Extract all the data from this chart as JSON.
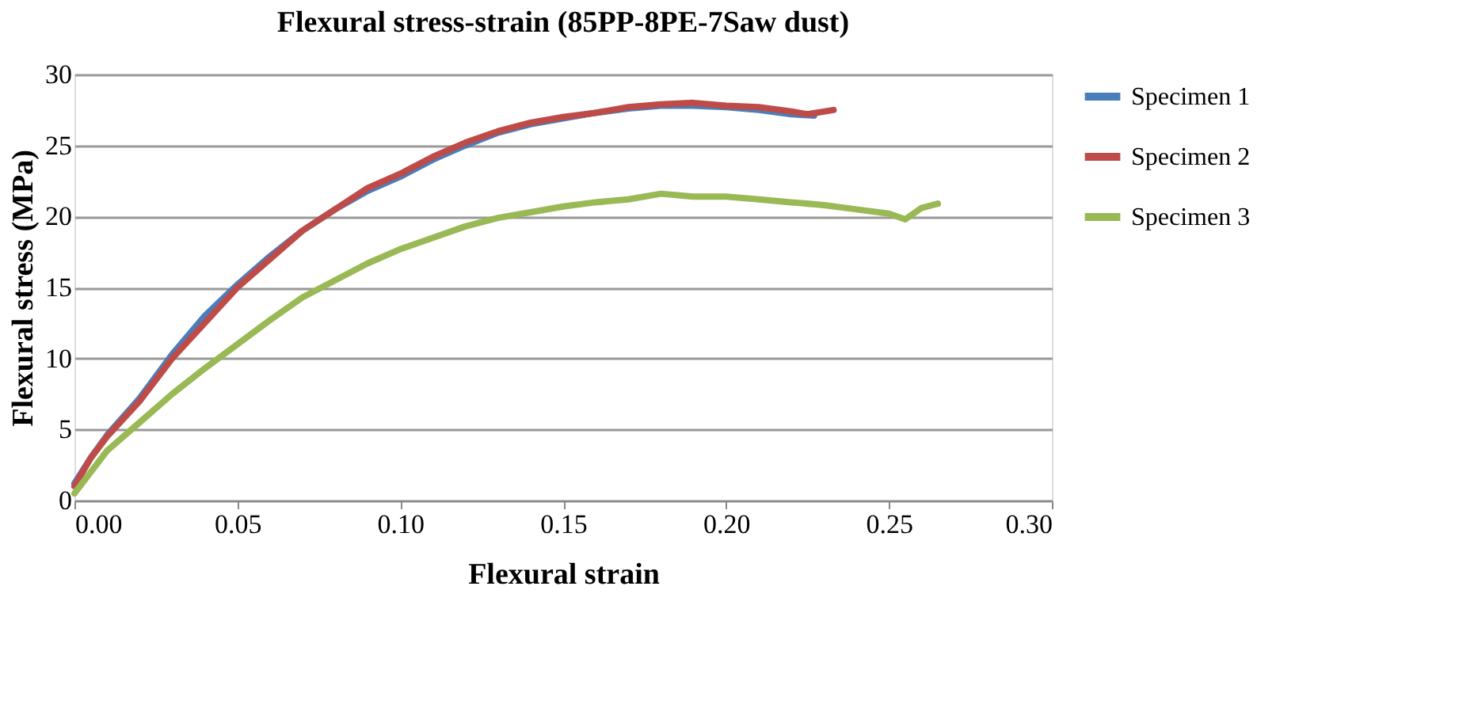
{
  "chart_data": {
    "type": "line",
    "title": "Flexural stress-strain (85PP-8PE-7Saw dust)",
    "xlabel": "Flexural strain",
    "ylabel": "Flexural stress (MPa)",
    "xlim": [
      0,
      0.3
    ],
    "xticks": [
      {
        "value": 0,
        "label": "0.00"
      },
      0.05,
      {
        "value": 0.1,
        "label": "0.10"
      },
      0.15,
      {
        "value": 0.2,
        "label": "0.20"
      },
      0.25,
      {
        "value": 0.3,
        "label": "0.30"
      }
    ],
    "ylim": [
      0,
      30
    ],
    "yticks": [
      0,
      5,
      10,
      15,
      20,
      25,
      30
    ],
    "grid": "y",
    "legend": "right",
    "marker": "none",
    "line_style": "solid",
    "series": [
      {
        "name": "Specimen 1",
        "color": "#4a7ebb",
        "x": [
          0,
          0.005,
          0.01,
          0.02,
          0.03,
          0.04,
          0.05,
          0.06,
          0.07,
          0.08,
          0.09,
          0.1,
          0.11,
          0.12,
          0.13,
          0.14,
          0.15,
          0.16,
          0.17,
          0.18,
          0.19,
          0.2,
          0.21,
          0.22,
          0.227
        ],
        "values": [
          1.2,
          3,
          4.6,
          7.2,
          10.3,
          13,
          15.2,
          17.2,
          19,
          20.5,
          21.8,
          22.8,
          24,
          25,
          25.9,
          26.5,
          26.9,
          27.3,
          27.6,
          27.8,
          27.8,
          27.7,
          27.5,
          27.2,
          27.1
        ]
      },
      {
        "name": "Specimen 2",
        "color": "#be4b48",
        "x": [
          0,
          0.005,
          0.01,
          0.02,
          0.03,
          0.04,
          0.05,
          0.06,
          0.07,
          0.08,
          0.09,
          0.1,
          0.11,
          0.12,
          0.13,
          0.14,
          0.15,
          0.16,
          0.17,
          0.18,
          0.19,
          0.2,
          0.21,
          0.22,
          0.225,
          0.233
        ],
        "values": [
          1,
          3,
          4.5,
          7,
          10,
          12.5,
          15,
          17,
          19,
          20.5,
          22,
          23,
          24.2,
          25.2,
          26,
          26.6,
          27,
          27.3,
          27.7,
          27.9,
          28,
          27.8,
          27.7,
          27.4,
          27.2,
          27.5
        ]
      },
      {
        "name": "Specimen 3",
        "color": "#98b954",
        "x": [
          0,
          0.005,
          0.01,
          0.02,
          0.03,
          0.04,
          0.05,
          0.06,
          0.07,
          0.08,
          0.09,
          0.1,
          0.11,
          0.12,
          0.13,
          0.14,
          0.15,
          0.16,
          0.17,
          0.18,
          0.19,
          0.2,
          0.21,
          0.22,
          0.23,
          0.24,
          0.25,
          0.255,
          0.26,
          0.265
        ],
        "values": [
          0.5,
          2,
          3.5,
          5.5,
          7.5,
          9.3,
          11,
          12.7,
          14.3,
          15.5,
          16.7,
          17.7,
          18.5,
          19.3,
          19.9,
          20.3,
          20.7,
          21,
          21.2,
          21.6,
          21.4,
          21.4,
          21.2,
          21,
          20.8,
          20.5,
          20.2,
          19.8,
          20.6,
          20.9
        ]
      }
    ]
  }
}
